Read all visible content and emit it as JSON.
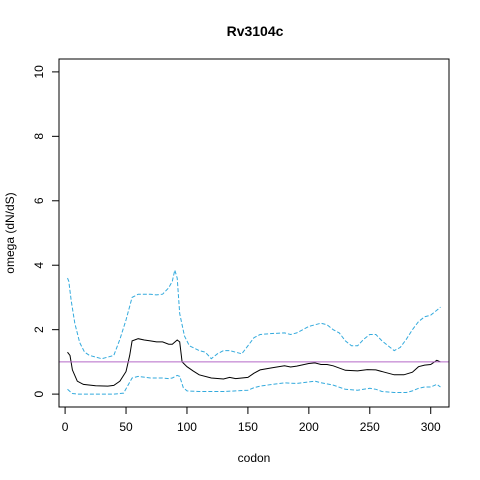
{
  "chart_data": {
    "type": "line",
    "title": "Rv3104c",
    "xlabel": "codon",
    "ylabel": "omega (dN/dS)",
    "xlim": [
      -5,
      315
    ],
    "ylim": [
      -0.4,
      10.4
    ],
    "x_ticks": [
      0,
      50,
      100,
      150,
      200,
      250,
      300
    ],
    "y_ticks": [
      0,
      2,
      4,
      6,
      8,
      10
    ],
    "grid": false,
    "reference_line": {
      "y": 1,
      "color": "#b469c8"
    },
    "series": [
      {
        "role": "estimate",
        "color": "#000000",
        "dash": "solid",
        "points": [
          [
            2,
            1.3
          ],
          [
            4,
            1.2
          ],
          [
            6,
            0.75
          ],
          [
            10,
            0.4
          ],
          [
            15,
            0.3
          ],
          [
            25,
            0.26
          ],
          [
            35,
            0.25
          ],
          [
            40,
            0.27
          ],
          [
            45,
            0.4
          ],
          [
            50,
            0.7
          ],
          [
            53,
            1.2
          ],
          [
            55,
            1.65
          ],
          [
            60,
            1.72
          ],
          [
            65,
            1.68
          ],
          [
            70,
            1.65
          ],
          [
            75,
            1.62
          ],
          [
            80,
            1.62
          ],
          [
            85,
            1.55
          ],
          [
            88,
            1.55
          ],
          [
            92,
            1.68
          ],
          [
            94,
            1.62
          ],
          [
            96,
            1.0
          ],
          [
            100,
            0.85
          ],
          [
            105,
            0.72
          ],
          [
            110,
            0.6
          ],
          [
            120,
            0.5
          ],
          [
            130,
            0.47
          ],
          [
            135,
            0.52
          ],
          [
            140,
            0.48
          ],
          [
            150,
            0.52
          ],
          [
            155,
            0.65
          ],
          [
            160,
            0.75
          ],
          [
            170,
            0.82
          ],
          [
            180,
            0.88
          ],
          [
            185,
            0.84
          ],
          [
            190,
            0.87
          ],
          [
            200,
            0.95
          ],
          [
            205,
            0.97
          ],
          [
            210,
            0.92
          ],
          [
            215,
            0.92
          ],
          [
            220,
            0.88
          ],
          [
            230,
            0.74
          ],
          [
            240,
            0.72
          ],
          [
            248,
            0.76
          ],
          [
            255,
            0.75
          ],
          [
            262,
            0.68
          ],
          [
            270,
            0.6
          ],
          [
            278,
            0.6
          ],
          [
            285,
            0.68
          ],
          [
            290,
            0.85
          ],
          [
            295,
            0.9
          ],
          [
            300,
            0.92
          ],
          [
            305,
            1.05
          ],
          [
            308,
            1.0
          ]
        ]
      },
      {
        "role": "upper",
        "color": "#33aadd",
        "dash": "dashed",
        "points": [
          [
            2,
            3.6
          ],
          [
            3,
            3.5
          ],
          [
            5,
            2.9
          ],
          [
            8,
            2.2
          ],
          [
            12,
            1.6
          ],
          [
            16,
            1.3
          ],
          [
            20,
            1.2
          ],
          [
            25,
            1.15
          ],
          [
            30,
            1.1
          ],
          [
            35,
            1.15
          ],
          [
            40,
            1.2
          ],
          [
            45,
            1.7
          ],
          [
            50,
            2.3
          ],
          [
            55,
            3.0
          ],
          [
            60,
            3.1
          ],
          [
            65,
            3.1
          ],
          [
            70,
            3.1
          ],
          [
            75,
            3.08
          ],
          [
            80,
            3.1
          ],
          [
            85,
            3.3
          ],
          [
            88,
            3.5
          ],
          [
            90,
            3.85
          ],
          [
            92,
            3.6
          ],
          [
            94,
            2.5
          ],
          [
            98,
            1.8
          ],
          [
            102,
            1.5
          ],
          [
            110,
            1.35
          ],
          [
            115,
            1.3
          ],
          [
            120,
            1.1
          ],
          [
            125,
            1.25
          ],
          [
            130,
            1.35
          ],
          [
            135,
            1.35
          ],
          [
            140,
            1.3
          ],
          [
            145,
            1.25
          ],
          [
            150,
            1.5
          ],
          [
            155,
            1.75
          ],
          [
            160,
            1.85
          ],
          [
            170,
            1.88
          ],
          [
            180,
            1.9
          ],
          [
            185,
            1.85
          ],
          [
            190,
            1.9
          ],
          [
            195,
            2.0
          ],
          [
            200,
            2.1
          ],
          [
            205,
            2.15
          ],
          [
            210,
            2.2
          ],
          [
            215,
            2.15
          ],
          [
            220,
            2.0
          ],
          [
            225,
            1.9
          ],
          [
            230,
            1.65
          ],
          [
            235,
            1.5
          ],
          [
            240,
            1.5
          ],
          [
            245,
            1.7
          ],
          [
            250,
            1.85
          ],
          [
            255,
            1.85
          ],
          [
            260,
            1.65
          ],
          [
            265,
            1.5
          ],
          [
            270,
            1.35
          ],
          [
            275,
            1.45
          ],
          [
            280,
            1.7
          ],
          [
            285,
            2.0
          ],
          [
            290,
            2.25
          ],
          [
            295,
            2.4
          ],
          [
            300,
            2.45
          ],
          [
            305,
            2.6
          ],
          [
            308,
            2.7
          ]
        ]
      },
      {
        "role": "lower",
        "color": "#33aadd",
        "dash": "dashed",
        "points": [
          [
            2,
            0.15
          ],
          [
            4,
            0.08
          ],
          [
            6,
            0.02
          ],
          [
            10,
            0.0
          ],
          [
            20,
            0.0
          ],
          [
            30,
            0.0
          ],
          [
            40,
            0.0
          ],
          [
            45,
            0.02
          ],
          [
            48,
            0.03
          ],
          [
            52,
            0.3
          ],
          [
            55,
            0.5
          ],
          [
            60,
            0.55
          ],
          [
            70,
            0.5
          ],
          [
            80,
            0.5
          ],
          [
            85,
            0.48
          ],
          [
            88,
            0.5
          ],
          [
            92,
            0.58
          ],
          [
            94,
            0.55
          ],
          [
            97,
            0.2
          ],
          [
            100,
            0.1
          ],
          [
            110,
            0.08
          ],
          [
            120,
            0.08
          ],
          [
            130,
            0.08
          ],
          [
            140,
            0.1
          ],
          [
            150,
            0.12
          ],
          [
            155,
            0.2
          ],
          [
            160,
            0.25
          ],
          [
            170,
            0.3
          ],
          [
            180,
            0.35
          ],
          [
            190,
            0.33
          ],
          [
            200,
            0.38
          ],
          [
            205,
            0.4
          ],
          [
            210,
            0.35
          ],
          [
            220,
            0.28
          ],
          [
            230,
            0.15
          ],
          [
            240,
            0.12
          ],
          [
            250,
            0.18
          ],
          [
            255,
            0.15
          ],
          [
            260,
            0.08
          ],
          [
            270,
            0.05
          ],
          [
            280,
            0.05
          ],
          [
            285,
            0.1
          ],
          [
            290,
            0.18
          ],
          [
            295,
            0.22
          ],
          [
            300,
            0.22
          ],
          [
            305,
            0.3
          ],
          [
            308,
            0.22
          ]
        ]
      }
    ]
  }
}
